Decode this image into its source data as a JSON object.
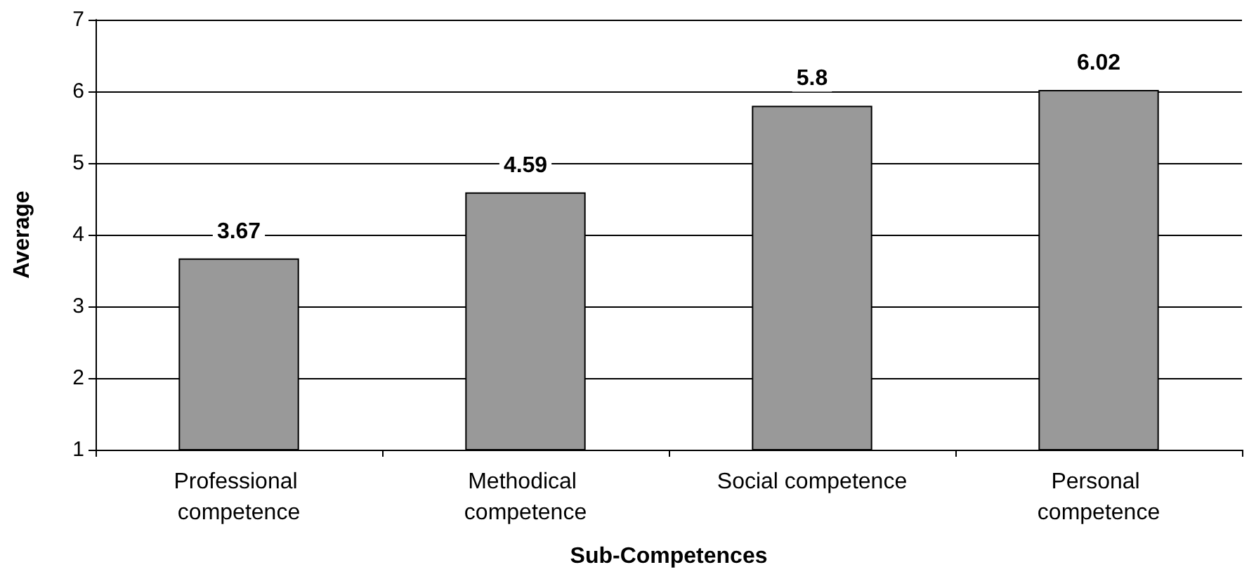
{
  "chart_data": {
    "type": "bar",
    "categories": [
      "Professional competence",
      "Methodical competence",
      "Social competence",
      "Personal competence"
    ],
    "values": [
      3.67,
      4.59,
      5.8,
      6.02
    ],
    "color": "#999999",
    "xlabel": "Sub-Competences",
    "ylabel": "Average",
    "ylim": [
      1,
      7
    ],
    "yticks": [
      1,
      2,
      3,
      4,
      5,
      6,
      7
    ],
    "grid": "y",
    "data_labels": true
  }
}
